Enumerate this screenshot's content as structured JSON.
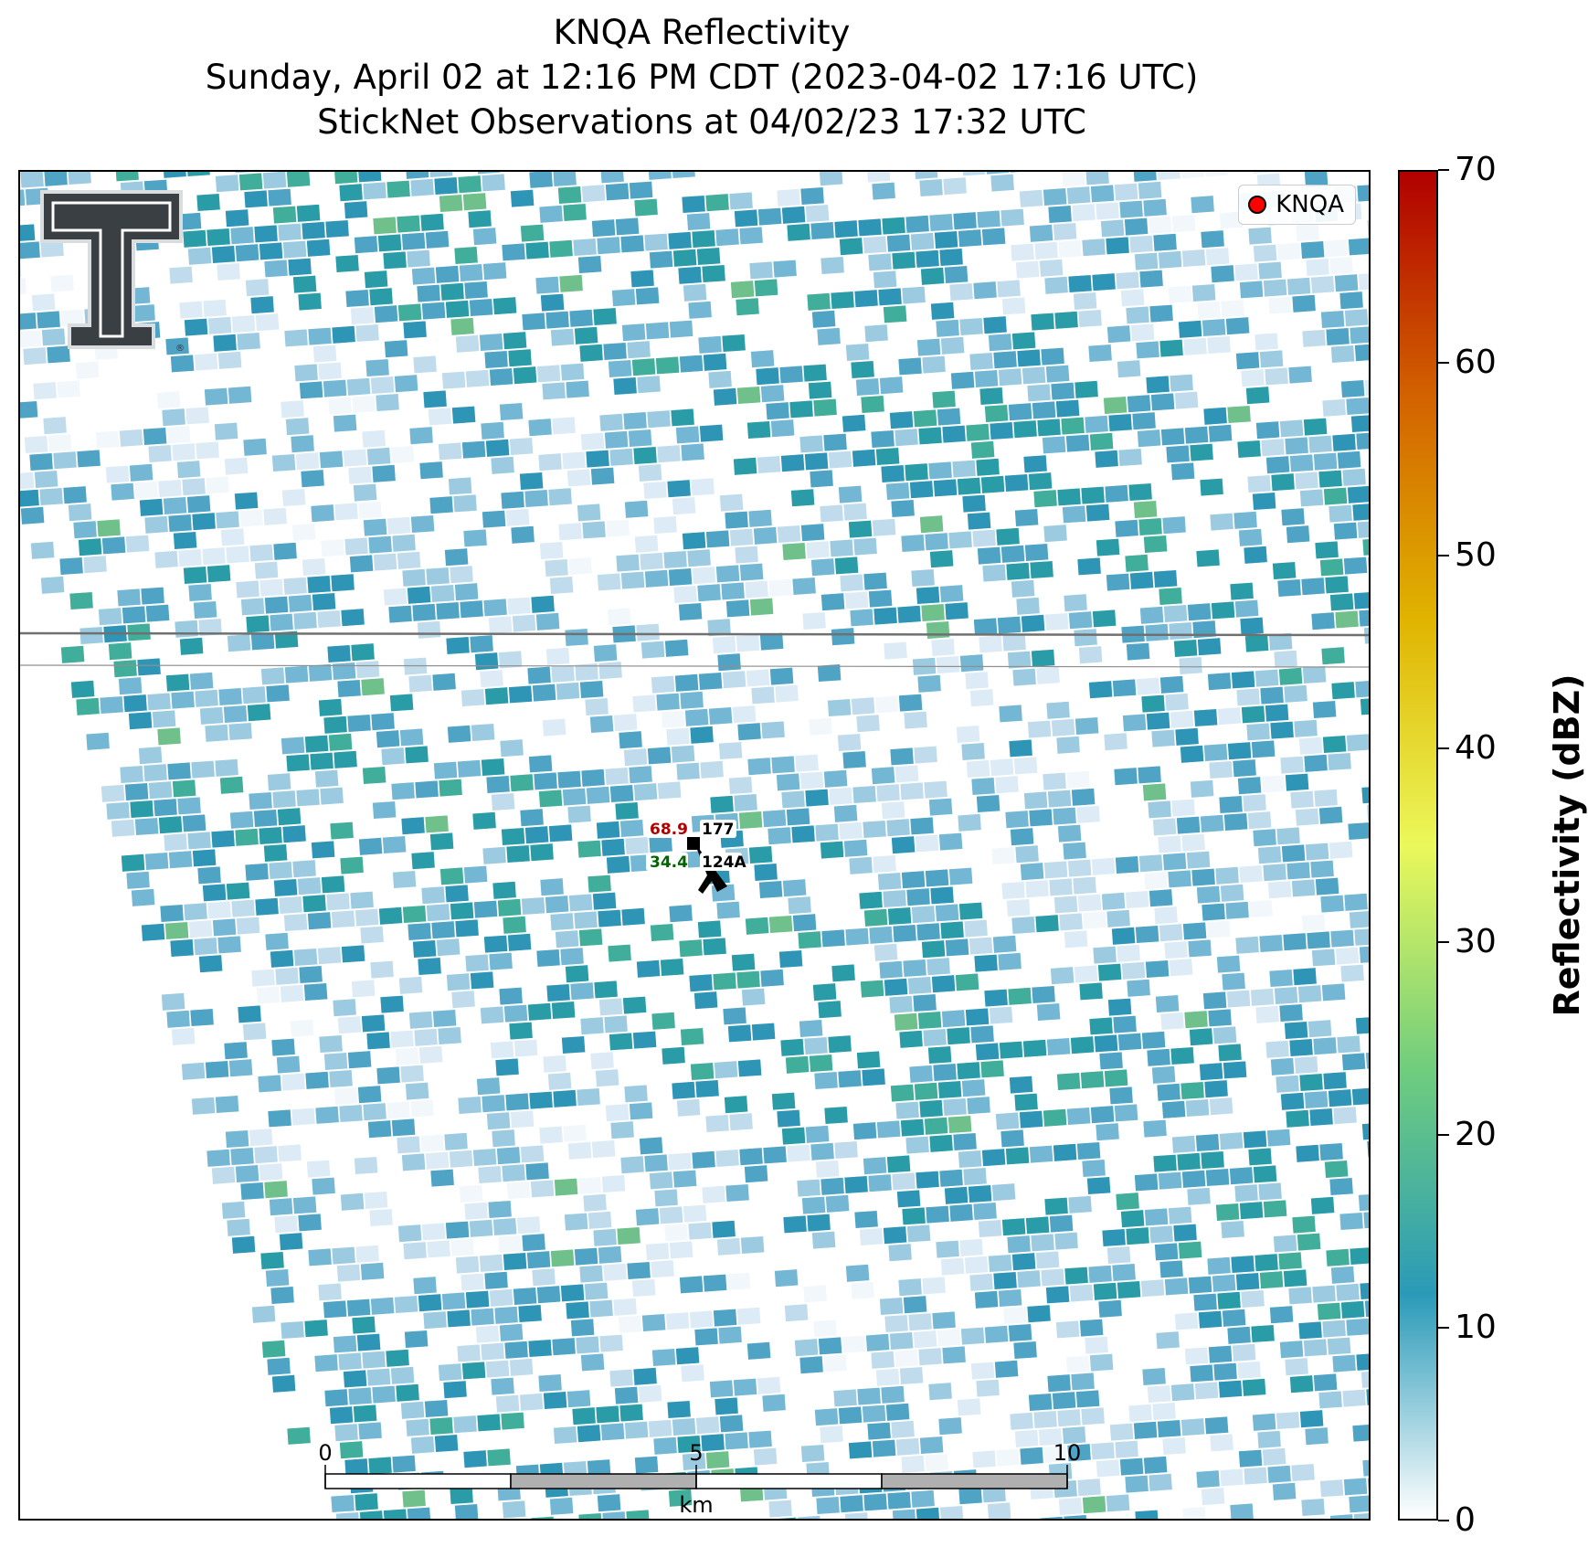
{
  "title": {
    "line1": "KNQA Reflectivity",
    "line2": "Sunday, April 02 at 12:16 PM CDT (2023-04-02 17:16 UTC)",
    "line3": "StickNet Observations at 04/02/23 17:32 UTC"
  },
  "legend": {
    "label": "KNQA",
    "marker_color": "#ff0000"
  },
  "colorbar": {
    "label": "Reflectivity (dBZ)",
    "ticks": [
      "0",
      "10",
      "20",
      "30",
      "40",
      "50",
      "60",
      "70"
    ],
    "range": [
      0,
      70
    ],
    "colors": [
      "#ffffff",
      "#2a9ab8",
      "#6fcd7e",
      "#ebf85a",
      "#e0b400",
      "#d36200",
      "#b00000"
    ]
  },
  "station": {
    "id": "124A",
    "temperature": "68.9",
    "pressure": "177",
    "dewpoint": "34.4",
    "wind_direction": "northwest"
  },
  "scale_bar": {
    "labels": [
      "0",
      "5",
      "10"
    ],
    "unit": "km"
  },
  "logo": {
    "description": "Texas Tech Double T logo"
  }
}
